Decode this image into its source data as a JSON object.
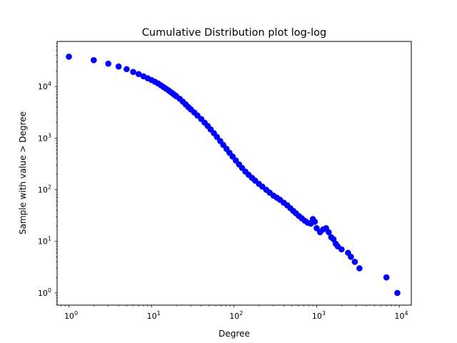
{
  "chart_data": {
    "type": "scatter",
    "title": "Cumulative Distribution plot log-log",
    "xlabel": "Degree",
    "ylabel": "Sample with value > Degree",
    "xscale": "log",
    "yscale": "log",
    "xlim": [
      0.72,
      14000
    ],
    "ylim": [
      0.58,
      75000
    ],
    "grid": false,
    "marker_color": "#0000ff",
    "x_ticks": [
      {
        "value": 1,
        "base": "10",
        "exp": "0"
      },
      {
        "value": 10,
        "base": "10",
        "exp": "1"
      },
      {
        "value": 100,
        "base": "10",
        "exp": "2"
      },
      {
        "value": 1000,
        "base": "10",
        "exp": "3"
      },
      {
        "value": 10000,
        "base": "10",
        "exp": "4"
      }
    ],
    "y_ticks": [
      {
        "value": 1,
        "base": "10",
        "exp": "0"
      },
      {
        "value": 10,
        "base": "10",
        "exp": "1"
      },
      {
        "value": 100,
        "base": "10",
        "exp": "2"
      },
      {
        "value": 1000,
        "base": "10",
        "exp": "3"
      },
      {
        "value": 10000,
        "base": "10",
        "exp": "4"
      }
    ],
    "points": [
      [
        1,
        38000
      ],
      [
        2,
        32500
      ],
      [
        3,
        27800
      ],
      [
        4,
        24500
      ],
      [
        5,
        21800
      ],
      [
        6,
        19200
      ],
      [
        7,
        17500
      ],
      [
        8,
        15800
      ],
      [
        9,
        14500
      ],
      [
        10,
        13400
      ],
      [
        11,
        12400
      ],
      [
        12,
        11500
      ],
      [
        13,
        10600
      ],
      [
        14,
        9800
      ],
      [
        15,
        9100
      ],
      [
        16,
        8500
      ],
      [
        17,
        7900
      ],
      [
        18,
        7400
      ],
      [
        19,
        6900
      ],
      [
        20,
        6500
      ],
      [
        22,
        5800
      ],
      [
        24,
        5100
      ],
      [
        26,
        4500
      ],
      [
        28,
        4000
      ],
      [
        30,
        3600
      ],
      [
        33,
        3150
      ],
      [
        36,
        2750
      ],
      [
        40,
        2350
      ],
      [
        44,
        2000
      ],
      [
        48,
        1720
      ],
      [
        52,
        1480
      ],
      [
        57,
        1250
      ],
      [
        62,
        1060
      ],
      [
        68,
        880
      ],
      [
        74,
        740
      ],
      [
        81,
        620
      ],
      [
        88,
        520
      ],
      [
        96,
        440
      ],
      [
        105,
        370
      ],
      [
        115,
        310
      ],
      [
        125,
        265
      ],
      [
        137,
        225
      ],
      [
        150,
        195
      ],
      [
        165,
        170
      ],
      [
        180,
        150
      ],
      [
        200,
        130
      ],
      [
        220,
        115
      ],
      [
        245,
        100
      ],
      [
        270,
        88
      ],
      [
        300,
        77
      ],
      [
        330,
        70
      ],
      [
        360,
        64
      ],
      [
        400,
        56
      ],
      [
        440,
        50
      ],
      [
        480,
        44
      ],
      [
        520,
        39
      ],
      [
        560,
        35
      ],
      [
        610,
        31
      ],
      [
        660,
        28
      ],
      [
        720,
        25
      ],
      [
        780,
        23
      ],
      [
        850,
        22
      ],
      [
        900,
        27
      ],
      [
        950,
        24
      ],
      [
        1000,
        18
      ],
      [
        1100,
        15
      ],
      [
        1200,
        17
      ],
      [
        1300,
        18
      ],
      [
        1400,
        15
      ],
      [
        1500,
        12
      ],
      [
        1600,
        11
      ],
      [
        1700,
        9
      ],
      [
        1800,
        8
      ],
      [
        2000,
        7
      ],
      [
        2400,
        6
      ],
      [
        2600,
        5
      ],
      [
        2900,
        4
      ],
      [
        3300,
        3
      ],
      [
        7000,
        2
      ],
      [
        9500,
        1
      ]
    ]
  }
}
